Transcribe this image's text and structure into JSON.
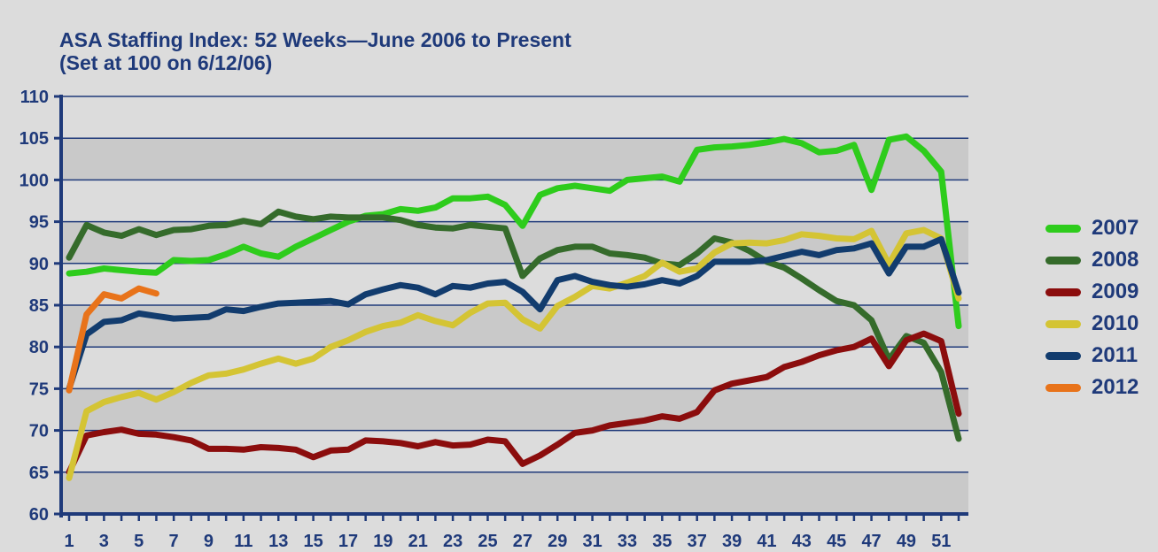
{
  "chart_data": {
    "type": "line",
    "title": "ASA Staffing Index: 52 Weeks—June 2006 to Present",
    "subtitle": "(Set at 100 on 6/12/06)",
    "xlabel": "",
    "ylabel": "",
    "ylim": [
      60,
      110
    ],
    "yticks": [
      60,
      65,
      70,
      75,
      80,
      85,
      90,
      95,
      100,
      105,
      110
    ],
    "xlim": [
      1,
      52
    ],
    "xticks": [
      1,
      3,
      5,
      7,
      9,
      11,
      13,
      15,
      17,
      19,
      21,
      23,
      25,
      27,
      29,
      31,
      33,
      35,
      37,
      39,
      41,
      43,
      45,
      47,
      49,
      51
    ],
    "grid": "horizontal",
    "legend_position": "right",
    "series": [
      {
        "name": "2007",
        "color": "#2ecc1c",
        "x": [
          1,
          2,
          3,
          4,
          5,
          6,
          7,
          8,
          9,
          10,
          11,
          12,
          13,
          14,
          15,
          16,
          17,
          18,
          19,
          20,
          21,
          22,
          23,
          24,
          25,
          26,
          27,
          28,
          29,
          30,
          31,
          32,
          33,
          34,
          35,
          36,
          37,
          38,
          39,
          40,
          41,
          42,
          43,
          44,
          45,
          46,
          47,
          48,
          49,
          50,
          51,
          52
        ],
        "values": [
          88.8,
          89,
          89.4,
          89.2,
          89,
          88.9,
          90.4,
          90.3,
          90.4,
          91.1,
          92,
          91.2,
          90.8,
          92,
          93,
          94,
          95,
          95.7,
          95.9,
          96.5,
          96.3,
          96.7,
          97.8,
          97.8,
          98,
          97,
          94.5,
          98.2,
          99,
          99.3,
          99,
          98.7,
          100,
          100.2,
          100.4,
          99.8,
          103.6,
          103.9,
          104,
          104.2,
          104.5,
          104.9,
          104.4,
          103.3,
          103.5,
          104.2,
          98.8,
          104.8,
          105.2,
          103.5,
          101,
          82.5
        ]
      },
      {
        "name": "2008",
        "color": "#356b2b",
        "x": [
          1,
          2,
          3,
          4,
          5,
          6,
          7,
          8,
          9,
          10,
          11,
          12,
          13,
          14,
          15,
          16,
          17,
          18,
          19,
          20,
          21,
          22,
          23,
          24,
          25,
          26,
          27,
          28,
          29,
          30,
          31,
          32,
          33,
          34,
          35,
          36,
          37,
          38,
          39,
          40,
          41,
          42,
          43,
          44,
          45,
          46,
          47,
          48,
          49,
          50,
          51,
          52
        ],
        "values": [
          90.7,
          94.6,
          93.7,
          93.3,
          94.1,
          93.4,
          94,
          94.1,
          94.5,
          94.6,
          95.1,
          94.7,
          96.2,
          95.6,
          95.3,
          95.6,
          95.5,
          95.5,
          95.5,
          95.2,
          94.6,
          94.3,
          94.2,
          94.6,
          94.4,
          94.2,
          88.5,
          90.6,
          91.6,
          92,
          92,
          91.2,
          91,
          90.7,
          90,
          89.8,
          91.2,
          93,
          92.5,
          91.5,
          90.2,
          89.5,
          88.2,
          86.8,
          85.5,
          85,
          83.2,
          78.5,
          81.3,
          80.5,
          77,
          69
        ]
      },
      {
        "name": "2009",
        "color": "#8b0d0d",
        "x": [
          1,
          2,
          3,
          4,
          5,
          6,
          7,
          8,
          9,
          10,
          11,
          12,
          13,
          14,
          15,
          16,
          17,
          18,
          19,
          20,
          21,
          22,
          23,
          24,
          25,
          26,
          27,
          28,
          29,
          30,
          31,
          32,
          33,
          34,
          35,
          36,
          37,
          38,
          39,
          40,
          41,
          42,
          43,
          44,
          45,
          46,
          47,
          48,
          49,
          50,
          51,
          52
        ],
        "values": [
          65,
          69.4,
          69.8,
          70.1,
          69.6,
          69.5,
          69.2,
          68.8,
          67.8,
          67.8,
          67.7,
          68,
          67.9,
          67.7,
          66.8,
          67.6,
          67.7,
          68.8,
          68.7,
          68.5,
          68.1,
          68.6,
          68.2,
          68.3,
          68.9,
          68.7,
          66,
          67,
          68.3,
          69.7,
          70,
          70.6,
          70.9,
          71.2,
          71.7,
          71.4,
          72.2,
          74.8,
          75.6,
          76,
          76.4,
          77.6,
          78.2,
          79,
          79.6,
          80,
          81,
          77.7,
          80.8,
          81.6,
          80.7,
          72
        ]
      },
      {
        "name": "2010",
        "color": "#d4c434",
        "x": [
          1,
          2,
          3,
          4,
          5,
          6,
          7,
          8,
          9,
          10,
          11,
          12,
          13,
          14,
          15,
          16,
          17,
          18,
          19,
          20,
          21,
          22,
          23,
          24,
          25,
          26,
          27,
          28,
          29,
          30,
          31,
          32,
          33,
          34,
          35,
          36,
          37,
          38,
          39,
          40,
          41,
          42,
          43,
          44,
          45,
          46,
          47,
          48,
          49,
          50,
          51,
          52
        ],
        "values": [
          64.3,
          72.3,
          73.4,
          74,
          74.5,
          73.7,
          74.6,
          75.7,
          76.6,
          76.8,
          77.3,
          78,
          78.6,
          78,
          78.6,
          80,
          80.8,
          81.8,
          82.5,
          82.9,
          83.8,
          83.1,
          82.6,
          84.1,
          85.2,
          85.3,
          83.3,
          82.2,
          84.9,
          86,
          87.3,
          87,
          87.7,
          88.5,
          90.1,
          89,
          89.4,
          91.3,
          92.4,
          92.5,
          92.4,
          92.8,
          93.5,
          93.3,
          93,
          92.9,
          93.9,
          89.9,
          93.6,
          94,
          93,
          85.8
        ]
      },
      {
        "name": "2011",
        "color": "#123c6e",
        "x": [
          1,
          2,
          3,
          4,
          5,
          6,
          7,
          8,
          9,
          10,
          11,
          12,
          13,
          14,
          15,
          16,
          17,
          18,
          19,
          20,
          21,
          22,
          23,
          24,
          25,
          26,
          27,
          28,
          29,
          30,
          31,
          32,
          33,
          34,
          35,
          36,
          37,
          38,
          39,
          40,
          41,
          42,
          43,
          44,
          45,
          46,
          47,
          48,
          49,
          50,
          51,
          52
        ],
        "values": [
          75,
          81.5,
          83,
          83.2,
          84,
          83.7,
          83.4,
          83.5,
          83.6,
          84.5,
          84.3,
          84.8,
          85.2,
          85.3,
          85.4,
          85.5,
          85.1,
          86.3,
          86.9,
          87.4,
          87.1,
          86.3,
          87.3,
          87.1,
          87.6,
          87.8,
          86.6,
          84.5,
          88,
          88.5,
          87.8,
          87.4,
          87.2,
          87.5,
          88,
          87.6,
          88.5,
          90.2,
          90.2,
          90.2,
          90.4,
          90.9,
          91.4,
          91,
          91.6,
          91.8,
          92.4,
          88.8,
          92,
          92,
          92.9,
          86.5
        ]
      },
      {
        "name": "2012",
        "color": "#e8731a",
        "x": [
          1,
          2,
          3,
          4,
          5,
          6
        ],
        "values": [
          74.8,
          83.9,
          86.3,
          85.8,
          87,
          86.4
        ]
      }
    ]
  }
}
